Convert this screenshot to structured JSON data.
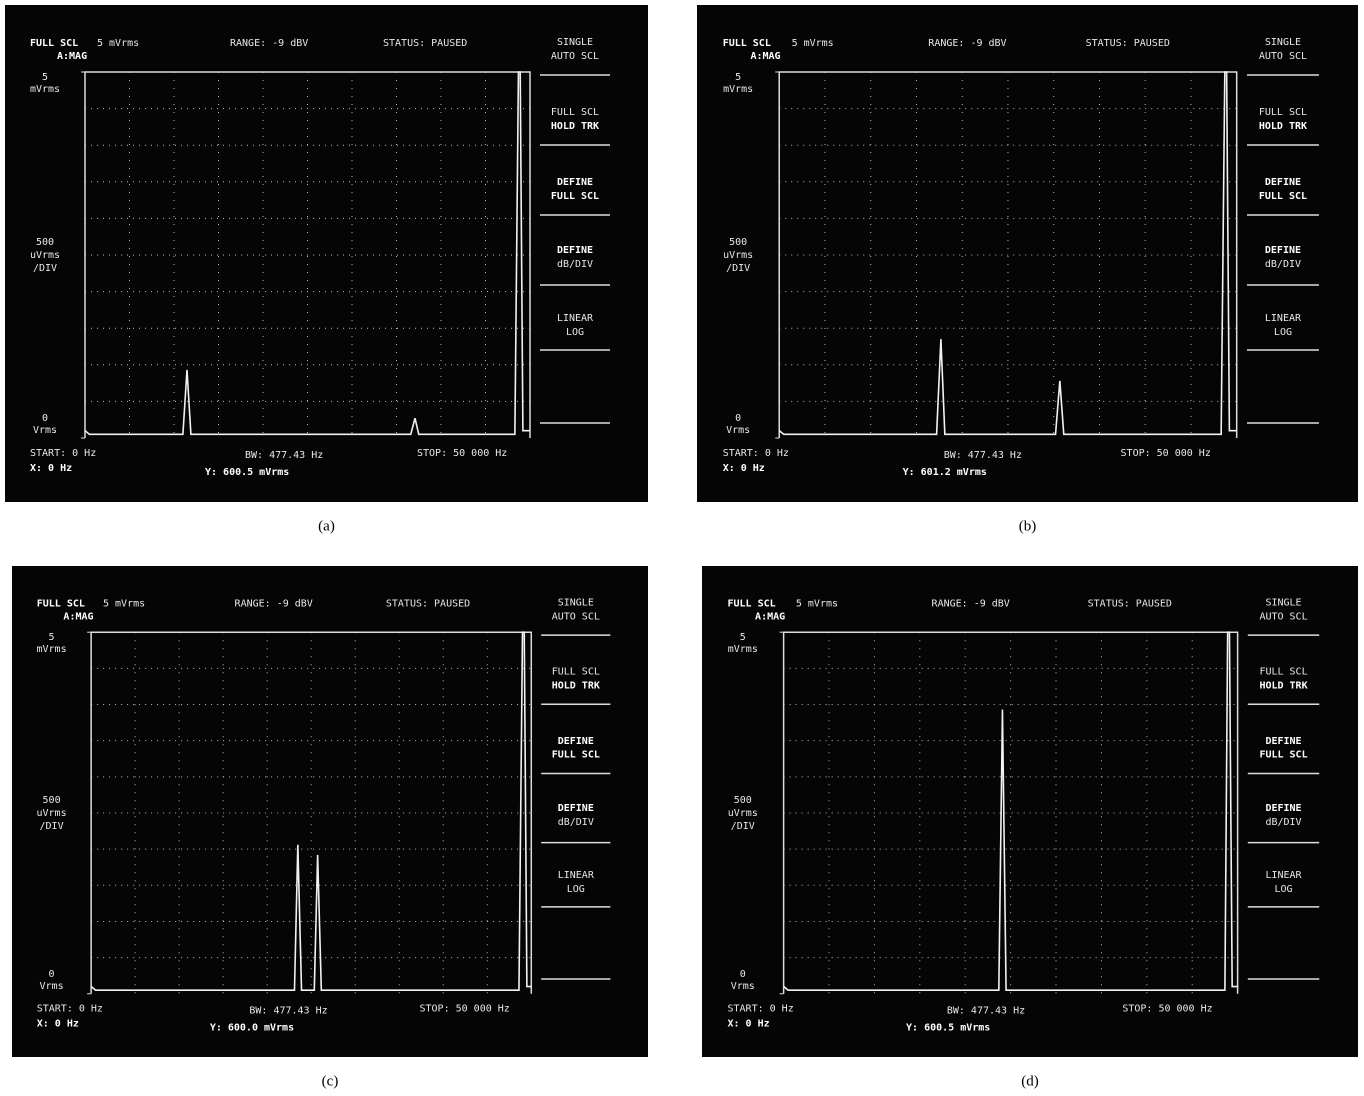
{
  "chart_data": [
    {
      "type": "line",
      "caption": "(a)",
      "full_scale": "FULL SCL",
      "full_scale_value": "5 mVrms",
      "trace": "A:MAG",
      "range": "RANGE: -9 dBV",
      "status": "STATUS: PAUSED",
      "softkeys": [
        [
          "SINGLE",
          "AUTO SCL"
        ],
        [
          "FULL SCL",
          "HOLD TRK"
        ],
        [
          "DEFINE",
          "FULL SCL"
        ],
        [
          "DEFINE",
          "dB/DIV"
        ],
        [
          "LINEAR",
          "LOG"
        ]
      ],
      "yticks": [
        0,
        5
      ],
      "ytick_units": [
        "Vrms",
        "mVrms"
      ],
      "ydiv_label": [
        "500",
        "uVrms",
        "/DIV"
      ],
      "start": "START: 0 Hz",
      "bw": "BW: 477.43 Hz",
      "stop": "STOP: 50 000 Hz",
      "marker_x": "X: 0 Hz",
      "marker_y": "Y: 600.5 mVrms",
      "xlim": [
        0,
        50000
      ],
      "ylim": [
        0,
        5
      ],
      "xgrid": [
        5000,
        10000,
        15000,
        20000,
        25000,
        30000,
        35000,
        40000,
        45000
      ],
      "ygrid": [
        0.5,
        1,
        1.5,
        2,
        2.5,
        3,
        3.5,
        4,
        4.5
      ],
      "color": "#f2f2f2",
      "x": [
        0,
        500,
        11000,
        11460,
        11900,
        36600,
        37080,
        37500,
        48300,
        48700,
        48900,
        49200,
        50000
      ],
      "series": [
        {
          "values": [
            0.1,
            0.05,
            0.05,
            0.93,
            0.05,
            0.05,
            0.27,
            0.05,
            0.05,
            5,
            5,
            0.1,
            0.1
          ]
        }
      ]
    },
    {
      "type": "line",
      "caption": "(b)",
      "full_scale": "FULL SCL",
      "full_scale_value": "5 mVrms",
      "trace": "A:MAG",
      "range": "RANGE: -9 dBV",
      "status": "STATUS: PAUSED",
      "softkeys": [
        [
          "SINGLE",
          "AUTO SCL"
        ],
        [
          "FULL SCL",
          "HOLD TRK"
        ],
        [
          "DEFINE",
          "FULL SCL"
        ],
        [
          "DEFINE",
          "dB/DIV"
        ],
        [
          "LINEAR",
          "LOG"
        ]
      ],
      "yticks": [
        0,
        5
      ],
      "ytick_units": [
        "Vrms",
        "mVrms"
      ],
      "ydiv_label": [
        "500",
        "uVrms",
        "/DIV"
      ],
      "start": "START: 0 Hz",
      "bw": "BW: 477.43 Hz",
      "stop": "STOP: 50 000 Hz",
      "marker_x": "X: 0 Hz",
      "marker_y": "Y: 601.2 mVrms",
      "xlim": [
        0,
        50000
      ],
      "ylim": [
        0,
        5
      ],
      "xgrid": [
        5000,
        10000,
        15000,
        20000,
        25000,
        30000,
        35000,
        40000,
        45000
      ],
      "ygrid": [
        0.5,
        1,
        1.5,
        2,
        2.5,
        3,
        3.5,
        4,
        4.5
      ],
      "color": "#f2f2f2",
      "x": [
        0,
        500,
        17200,
        17670,
        18100,
        30200,
        30670,
        31100,
        48300,
        48700,
        48900,
        49200,
        50000
      ],
      "series": [
        {
          "values": [
            0.1,
            0.05,
            0.05,
            1.35,
            0.05,
            0.05,
            0.78,
            0.05,
            0.05,
            5,
            5,
            0.1,
            0.1
          ]
        }
      ]
    },
    {
      "type": "line",
      "caption": "(c)",
      "full_scale": "FULL SCL",
      "full_scale_value": "5 mVrms",
      "trace": "A:MAG",
      "range": "RANGE: -9 dBV",
      "status": "STATUS: PAUSED",
      "softkeys": [
        [
          "SINGLE",
          "AUTO SCL"
        ],
        [
          "FULL SCL",
          "HOLD TRK"
        ],
        [
          "DEFINE",
          "FULL SCL"
        ],
        [
          "DEFINE",
          "dB/DIV"
        ],
        [
          "LINEAR",
          "LOG"
        ]
      ],
      "yticks": [
        0,
        5
      ],
      "ytick_units": [
        "Vrms",
        "mVrms"
      ],
      "ydiv_label": [
        "500",
        "uVrms",
        "/DIV"
      ],
      "start": "START: 0 Hz",
      "bw": "BW: 477.43 Hz",
      "stop": "STOP: 50 000 Hz",
      "marker_x": "X: 0 Hz",
      "marker_y": "Y: 600.0 mVrms",
      "xlim": [
        0,
        50000
      ],
      "ylim": [
        0,
        5
      ],
      "xgrid": [
        5000,
        10000,
        15000,
        20000,
        25000,
        30000,
        35000,
        40000,
        45000
      ],
      "ygrid": [
        0.5,
        1,
        1.5,
        2,
        2.5,
        3,
        3.5,
        4,
        4.5
      ],
      "color": "#f2f2f2",
      "x": [
        0,
        500,
        23100,
        23480,
        23900,
        25350,
        25730,
        26150,
        48600,
        49000,
        49200,
        49500,
        50000
      ],
      "series": [
        {
          "values": [
            0.1,
            0.05,
            0.05,
            2.06,
            0.05,
            0.05,
            1.92,
            0.05,
            0.05,
            5,
            5,
            0.1,
            0.1
          ]
        }
      ]
    },
    {
      "type": "line",
      "caption": "(d)",
      "full_scale": "FULL SCL",
      "full_scale_value": "5 mVrms",
      "trace": "A:MAG",
      "range": "RANGE: -9 dBV",
      "status": "STATUS: PAUSED",
      "softkeys": [
        [
          "SINGLE",
          "AUTO SCL"
        ],
        [
          "FULL SCL",
          "HOLD TRK"
        ],
        [
          "DEFINE",
          "FULL SCL"
        ],
        [
          "DEFINE",
          "dB/DIV"
        ],
        [
          "LINEAR",
          "LOG"
        ]
      ],
      "yticks": [
        0,
        5
      ],
      "ytick_units": [
        "Vrms",
        "mVrms"
      ],
      "ydiv_label": [
        "500",
        "uVrms",
        "/DIV"
      ],
      "start": "START: 0 Hz",
      "bw": "BW: 477.43 Hz",
      "stop": "STOP: 50 000 Hz",
      "marker_x": "X: 0 Hz",
      "marker_y": "Y: 600.5 mVrms",
      "xlim": [
        0,
        50000
      ],
      "ylim": [
        0,
        5
      ],
      "xgrid": [
        5000,
        10000,
        15000,
        20000,
        25000,
        30000,
        35000,
        40000,
        45000
      ],
      "ygrid": [
        0.5,
        1,
        1.5,
        2,
        2.5,
        3,
        3.5,
        4,
        4.5
      ],
      "color": "#f2f2f2",
      "x": [
        0,
        500,
        23700,
        24100,
        24500,
        48600,
        48900,
        49100,
        49400,
        50000
      ],
      "series": [
        {
          "values": [
            0.1,
            0.05,
            0.05,
            3.93,
            0.05,
            0.05,
            5,
            5,
            0.1,
            0.1
          ]
        }
      ]
    }
  ]
}
